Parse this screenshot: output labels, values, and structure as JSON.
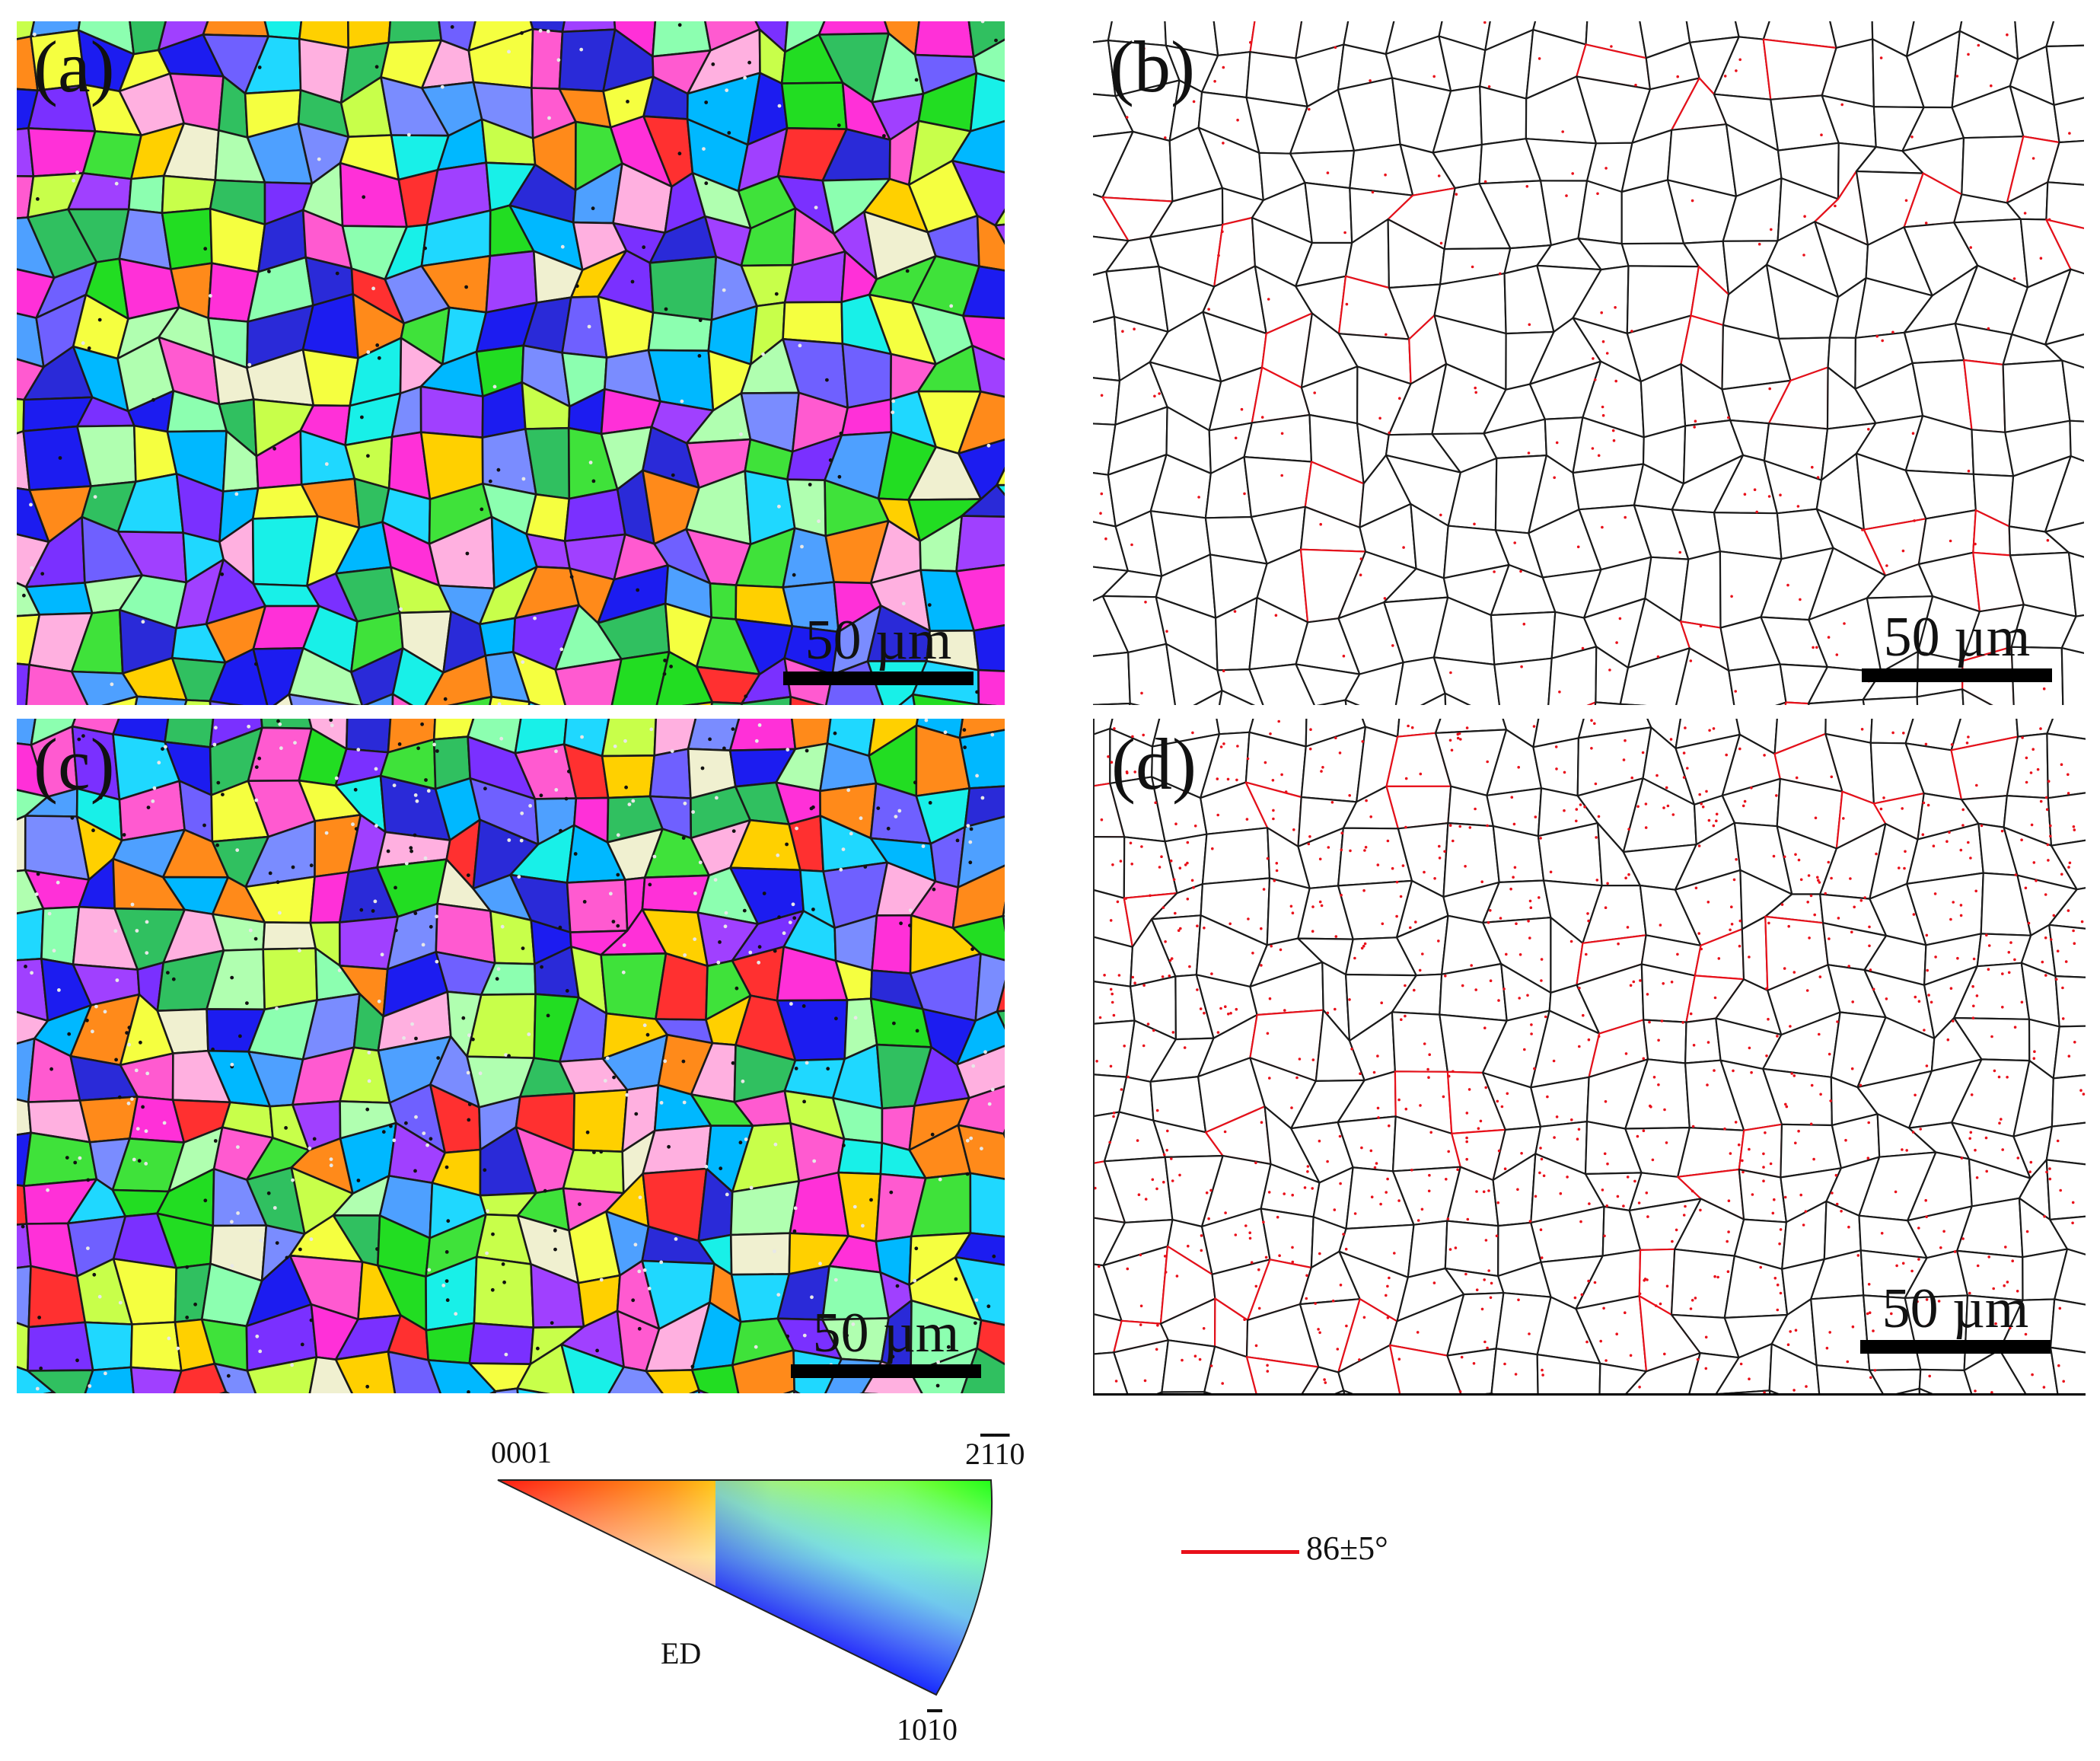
{
  "panels": [
    {
      "label": "(a)",
      "kind": "ipf-map",
      "scale_label": "50 µm"
    },
    {
      "label": "(b)",
      "kind": "boundary-map",
      "scale_label": "50 µm"
    },
    {
      "label": "(c)",
      "kind": "ipf-map",
      "scale_label": "50 µm"
    },
    {
      "label": "(d)",
      "kind": "boundary-map",
      "scale_label": "50 µm"
    }
  ],
  "ipf_legend": {
    "corner_0001": "0001",
    "corner_2110_digits": [
      "2",
      "1",
      "1",
      "0"
    ],
    "corner_1010_digits": [
      "1",
      "0",
      "1",
      "0"
    ],
    "center_label": "ED",
    "colors": {
      "0001": "#ff0000",
      "2110": "#00ff00",
      "1010": "#0000ff"
    }
  },
  "boundary_legend": {
    "label": "86±5°",
    "line_color": "#e8101a"
  },
  "colors": {
    "grain_boundary": "#1a1a1a",
    "twin_boundary": "#e8101a"
  }
}
